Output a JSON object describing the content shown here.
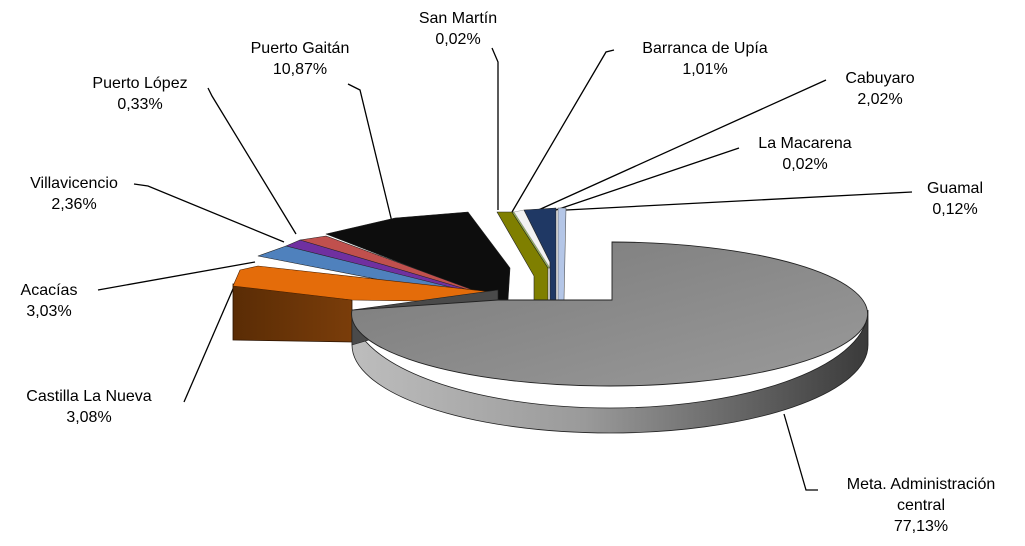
{
  "chart_data": {
    "type": "pie",
    "title": "",
    "legend": "none",
    "slices": [
      {
        "label": "Meta. Administración central",
        "label_lines": [
          "Meta. Administración",
          "central"
        ],
        "value_label": "77,13%",
        "value": 77.13,
        "color": "#8c8c8c"
      },
      {
        "label": "Castilla La Nueva",
        "value_label": "3,08%",
        "value": 3.08,
        "color": "#e46c0a"
      },
      {
        "label": "Acacías",
        "value_label": "3,03%",
        "value": 3.03,
        "color": "#4f81bd"
      },
      {
        "label": "Villavicencio",
        "value_label": "2,36%",
        "value": 2.36,
        "color": "#7030a0"
      },
      {
        "label": "Puerto López",
        "value_label": "0,33%",
        "value": 0.33,
        "color": "#c0504d"
      },
      {
        "label": "Puerto Gaitán",
        "value_label": "10,87%",
        "value": 10.87,
        "color": "#0d0d0d"
      },
      {
        "label": "San Martín",
        "value_label": "0,02%",
        "value": 0.02,
        "color": "#9bbb59"
      },
      {
        "label": "Barranca de Upía",
        "value_label": "1,01%",
        "value": 1.01,
        "color": "#7f7f00"
      },
      {
        "label": "Cabuyaro",
        "value_label": "2,02%",
        "value": 2.02,
        "color": "#f2f2f2"
      },
      {
        "label": "La Macarena",
        "value_label": "0,02%",
        "value": 0.02,
        "color": "#1f3864"
      },
      {
        "label": "Guamal",
        "value_label": "0,12%",
        "value": 0.12,
        "color": "#b4c6e7"
      }
    ]
  }
}
